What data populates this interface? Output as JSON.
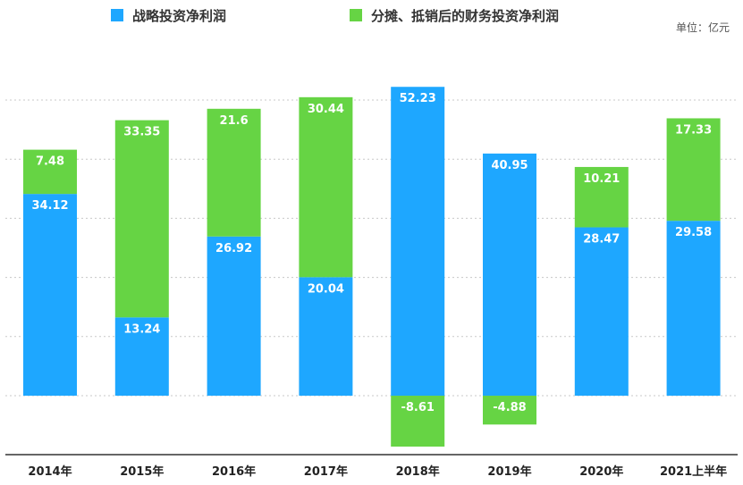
{
  "chart_data": {
    "type": "bar",
    "stacked": true,
    "unit": "单位：亿元",
    "categories": [
      "2014年",
      "2015年",
      "2016年",
      "2017年",
      "2018年",
      "2019年",
      "2020年",
      "2021上半年"
    ],
    "series": [
      {
        "name": "战略投资净利润",
        "color": "#1ea7ff",
        "values": [
          34.12,
          13.24,
          26.92,
          20.04,
          52.23,
          40.95,
          28.47,
          29.58
        ],
        "labels": [
          "34.12",
          "13.24",
          "26.92",
          "20.04",
          "52.23",
          "40.95",
          "28.47",
          "29.58"
        ]
      },
      {
        "name": "分摊、抵销后的财务投资净利润",
        "color": "#66d444",
        "values": [
          7.48,
          33.35,
          21.6,
          30.44,
          -8.61,
          -4.88,
          10.21,
          17.33
        ],
        "labels": [
          "7.48",
          "33.35",
          "21.6",
          "30.44",
          "-8.61",
          "-4.88",
          "10.21",
          "17.33"
        ]
      }
    ],
    "ylim": [
      -10,
      60
    ],
    "legend_position": "top",
    "gridlines": "dotted"
  }
}
